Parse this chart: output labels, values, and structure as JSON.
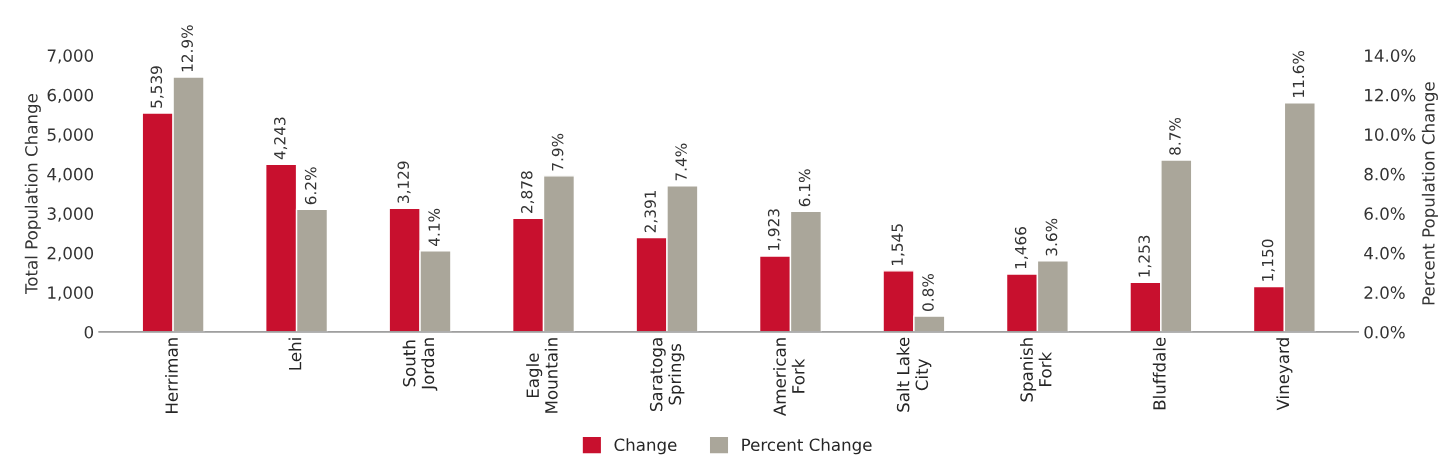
{
  "chart_data": {
    "type": "bar",
    "categories": [
      "Herriman",
      "Lehi",
      "South\nJordan",
      "Eagle\nMountain",
      "Saratoga\nSprings",
      "American\nFork",
      "Salt Lake\nCity",
      "Spanish\nFork",
      "Bluffdale",
      "Vineyard"
    ],
    "series": [
      {
        "name": "Change",
        "color": "#c8102e",
        "values": [
          5539,
          4243,
          3129,
          2878,
          2391,
          1923,
          1545,
          1466,
          1253,
          1150
        ],
        "value_labels": [
          "5,539",
          "4,243",
          "3,129",
          "2,878",
          "2,391",
          "1,923",
          "1,545",
          "1,466",
          "1,253",
          "1,150"
        ]
      },
      {
        "name": "Percent Change",
        "color": "#aaa69a",
        "axis": "y2",
        "values": [
          12.9,
          6.2,
          4.1,
          7.9,
          7.4,
          6.1,
          0.8,
          3.6,
          8.7,
          11.6
        ],
        "value_labels": [
          "12.9%",
          "6.2%",
          "4.1%",
          "7.9%",
          "7.4%",
          "6.1%",
          "0.8%",
          "3.6%",
          "8.7%",
          "11.6%"
        ]
      }
    ],
    "ylabel": "Total Population Change",
    "y2label": "Percent Population Change",
    "ylim": [
      0,
      7000
    ],
    "yticks": [
      0,
      {
        "value": 1000,
        "label": "1,000"
      },
      {
        "value": 2000,
        "label": "2,000"
      },
      {
        "value": 3000,
        "label": "3,000"
      },
      {
        "value": 4000,
        "label": "4,000"
      },
      {
        "value": 5000,
        "label": "5,000"
      },
      {
        "value": 6000,
        "label": "6,000"
      },
      {
        "value": 7000,
        "label": "7,000"
      }
    ],
    "y2lim": [
      0,
      14
    ],
    "y2ticks": [
      {
        "value": 0,
        "label": "0.0%"
      },
      {
        "value": 2,
        "label": "2.0%"
      },
      {
        "value": 4,
        "label": "4.0%"
      },
      {
        "value": 6,
        "label": "6.0%"
      },
      {
        "value": 8,
        "label": "8.0%"
      },
      {
        "value": 10,
        "label": "10.0%"
      },
      {
        "value": 12,
        "label": "12.0%"
      },
      {
        "value": 14,
        "label": "14.0%"
      }
    ],
    "legend": "bottom",
    "grid": false
  }
}
